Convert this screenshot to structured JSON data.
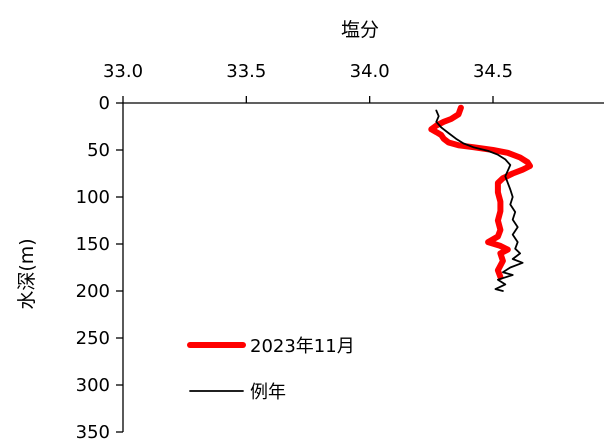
{
  "chart_data": {
    "type": "line",
    "xlabel": "塩分",
    "ylabel": "水深(m)",
    "x_axis_position": "top",
    "y_axis_inverted": true,
    "xlim": [
      33.0,
      34.95
    ],
    "ylim": [
      0,
      350
    ],
    "x_ticks": [
      33.0,
      33.5,
      34.0,
      34.5
    ],
    "x_tick_labels": [
      "33.0",
      "33.5",
      "34.0",
      "34.5"
    ],
    "y_ticks": [
      0,
      50,
      100,
      150,
      200,
      250,
      300,
      350
    ],
    "y_tick_labels": [
      "0",
      "50",
      "100",
      "150",
      "200",
      "250",
      "300",
      "350"
    ],
    "grid": false,
    "legend_position": "lower-left",
    "series": [
      {
        "name": "2023年11月",
        "color": "#ff0000",
        "points": [
          [
            34.37,
            5
          ],
          [
            34.36,
            12
          ],
          [
            34.33,
            17
          ],
          [
            34.3,
            20
          ],
          [
            34.27,
            24
          ],
          [
            34.25,
            28
          ],
          [
            34.27,
            31
          ],
          [
            34.29,
            34
          ],
          [
            34.3,
            38
          ],
          [
            34.32,
            42
          ],
          [
            34.36,
            45
          ],
          [
            34.42,
            47
          ],
          [
            34.5,
            50
          ],
          [
            34.56,
            53
          ],
          [
            34.61,
            58
          ],
          [
            34.64,
            63
          ],
          [
            34.65,
            67
          ],
          [
            34.62,
            71
          ],
          [
            34.58,
            75
          ],
          [
            34.54,
            80
          ],
          [
            34.52,
            85
          ],
          [
            34.52,
            95
          ],
          [
            34.53,
            105
          ],
          [
            34.53,
            115
          ],
          [
            34.52,
            125
          ],
          [
            34.53,
            135
          ],
          [
            34.52,
            142
          ],
          [
            34.48,
            148
          ],
          [
            34.53,
            152
          ],
          [
            34.56,
            156
          ],
          [
            34.53,
            160
          ],
          [
            34.54,
            168
          ],
          [
            34.52,
            178
          ],
          [
            34.53,
            185
          ]
        ]
      },
      {
        "name": "例年",
        "color": "#000000",
        "points": [
          [
            34.27,
            8
          ],
          [
            34.28,
            14
          ],
          [
            34.27,
            20
          ],
          [
            34.29,
            26
          ],
          [
            34.32,
            32
          ],
          [
            34.35,
            38
          ],
          [
            34.38,
            43
          ],
          [
            34.42,
            47
          ],
          [
            34.48,
            51
          ],
          [
            34.52,
            55
          ],
          [
            34.55,
            60
          ],
          [
            34.57,
            66
          ],
          [
            34.56,
            72
          ],
          [
            34.55,
            78
          ],
          [
            34.56,
            85
          ],
          [
            34.57,
            92
          ],
          [
            34.58,
            100
          ],
          [
            34.57,
            108
          ],
          [
            34.59,
            116
          ],
          [
            34.58,
            124
          ],
          [
            34.6,
            132
          ],
          [
            34.58,
            140
          ],
          [
            34.6,
            148
          ],
          [
            34.59,
            155
          ],
          [
            34.61,
            160
          ],
          [
            34.58,
            166
          ],
          [
            34.62,
            170
          ],
          [
            34.57,
            175
          ],
          [
            34.54,
            180
          ],
          [
            34.58,
            183
          ],
          [
            34.52,
            188
          ],
          [
            34.55,
            193
          ],
          [
            34.51,
            198
          ],
          [
            34.54,
            200
          ]
        ]
      }
    ]
  }
}
